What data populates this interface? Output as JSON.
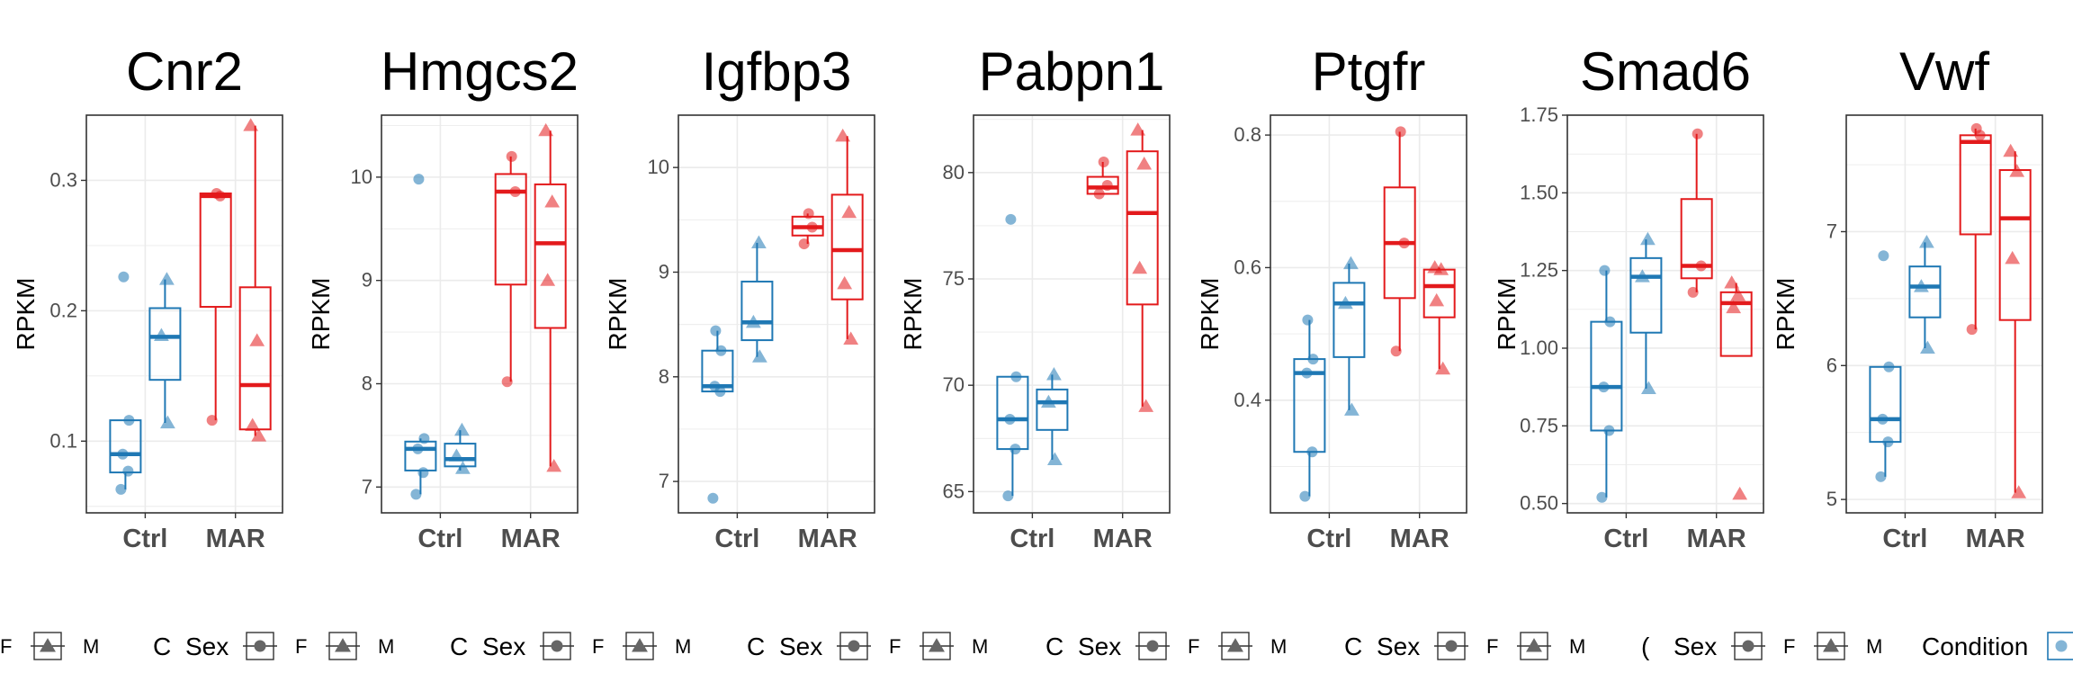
{
  "colors": {
    "ctrl": "#1f78b4",
    "mar": "#e31a1c",
    "grid": "#ebebeb",
    "axis": "#333333",
    "key": "#666666"
  },
  "chart_data": [
    {
      "type": "box",
      "title": "Cnr2",
      "ylabel": "RPKM",
      "categories": [
        "Ctrl",
        "MAR"
      ],
      "ylim": [
        0.045,
        0.35
      ],
      "yticks": [
        0.1,
        0.2,
        0.3
      ],
      "ytick_labels": [
        "0.1",
        "0.2",
        "0.3"
      ],
      "boxes": [
        {
          "condition": "Ctrl",
          "sex": "F",
          "q1": 0.076,
          "median": 0.09,
          "q3": 0.116,
          "whisker_low": 0.063,
          "whisker_high": 0.116
        },
        {
          "condition": "Ctrl",
          "sex": "M",
          "q1": 0.147,
          "median": 0.18,
          "q3": 0.202,
          "whisker_low": 0.114,
          "whisker_high": 0.224
        },
        {
          "condition": "MAR",
          "sex": "F",
          "q1": 0.203,
          "median": 0.288,
          "q3": 0.29,
          "whisker_low": 0.116,
          "whisker_high": 0.29
        },
        {
          "condition": "MAR",
          "sex": "M",
          "q1": 0.109,
          "median": 0.143,
          "q3": 0.218,
          "whisker_low": 0.104,
          "whisker_high": 0.342
        }
      ],
      "points": [
        {
          "condition": "Ctrl",
          "sex": "F",
          "values": [
            0.063,
            0.077,
            0.09,
            0.116,
            0.226
          ]
        },
        {
          "condition": "Ctrl",
          "sex": "M",
          "values": [
            0.114,
            0.181,
            0.224
          ]
        },
        {
          "condition": "MAR",
          "sex": "F",
          "values": [
            0.116,
            0.288,
            0.29
          ]
        },
        {
          "condition": "MAR",
          "sex": "M",
          "values": [
            0.104,
            0.112,
            0.177,
            0.342
          ]
        }
      ]
    },
    {
      "type": "box",
      "title": "Hmgcs2",
      "ylabel": "RPKM",
      "categories": [
        "Ctrl",
        "MAR"
      ],
      "ylim": [
        6.75,
        10.6
      ],
      "yticks": [
        7,
        8,
        9,
        10
      ],
      "ytick_labels": [
        "7",
        "8",
        "9",
        "10"
      ],
      "boxes": [
        {
          "condition": "Ctrl",
          "sex": "F",
          "q1": 7.16,
          "median": 7.37,
          "q3": 7.44,
          "whisker_low": 6.93,
          "whisker_high": 7.47
        },
        {
          "condition": "Ctrl",
          "sex": "M",
          "q1": 7.2,
          "median": 7.27,
          "q3": 7.42,
          "whisker_low": 7.16,
          "whisker_high": 7.55
        },
        {
          "condition": "MAR",
          "sex": "F",
          "q1": 8.96,
          "median": 9.86,
          "q3": 10.03,
          "whisker_low": 8.02,
          "whisker_high": 10.2
        },
        {
          "condition": "MAR",
          "sex": "M",
          "q1": 8.54,
          "median": 9.36,
          "q3": 9.93,
          "whisker_low": 7.2,
          "whisker_high": 10.45
        }
      ],
      "points": [
        {
          "condition": "Ctrl",
          "sex": "F",
          "values": [
            6.93,
            7.14,
            7.37,
            7.47,
            9.98
          ]
        },
        {
          "condition": "Ctrl",
          "sex": "M",
          "values": [
            7.18,
            7.3,
            7.55
          ]
        },
        {
          "condition": "MAR",
          "sex": "F",
          "values": [
            8.02,
            9.86,
            10.2
          ]
        },
        {
          "condition": "MAR",
          "sex": "M",
          "values": [
            7.2,
            9.0,
            9.76,
            10.45
          ]
        }
      ]
    },
    {
      "type": "box",
      "title": "Igfbp3",
      "ylabel": "RPKM",
      "categories": [
        "Ctrl",
        "MAR"
      ],
      "ylim": [
        6.7,
        10.5
      ],
      "yticks": [
        7,
        8,
        9,
        10
      ],
      "ytick_labels": [
        "7",
        "8",
        "9",
        "10"
      ],
      "boxes": [
        {
          "condition": "Ctrl",
          "sex": "F",
          "q1": 7.86,
          "median": 7.91,
          "q3": 8.25,
          "whisker_low": 7.86,
          "whisker_high": 8.44
        },
        {
          "condition": "Ctrl",
          "sex": "M",
          "q1": 8.35,
          "median": 8.52,
          "q3": 8.91,
          "whisker_low": 8.19,
          "whisker_high": 9.28
        },
        {
          "condition": "MAR",
          "sex": "F",
          "q1": 9.35,
          "median": 9.43,
          "q3": 9.53,
          "whisker_low": 9.27,
          "whisker_high": 9.56
        },
        {
          "condition": "MAR",
          "sex": "M",
          "q1": 8.74,
          "median": 9.21,
          "q3": 9.74,
          "whisker_low": 8.36,
          "whisker_high": 10.3
        }
      ],
      "points": [
        {
          "condition": "Ctrl",
          "sex": "F",
          "values": [
            6.84,
            7.86,
            7.91,
            8.25,
            8.44
          ]
        },
        {
          "condition": "Ctrl",
          "sex": "M",
          "values": [
            8.19,
            8.52,
            9.28
          ]
        },
        {
          "condition": "MAR",
          "sex": "F",
          "values": [
            9.27,
            9.43,
            9.56
          ]
        },
        {
          "condition": "MAR",
          "sex": "M",
          "values": [
            8.36,
            8.89,
            9.57,
            10.3
          ]
        }
      ]
    },
    {
      "type": "box",
      "title": "Pabpn1",
      "ylabel": "RPKM",
      "categories": [
        "Ctrl",
        "MAR"
      ],
      "ylim": [
        64.0,
        82.7
      ],
      "yticks": [
        65,
        70,
        75,
        80
      ],
      "ytick_labels": [
        "65",
        "70",
        "75",
        "80"
      ],
      "boxes": [
        {
          "condition": "Ctrl",
          "sex": "F",
          "q1": 67.0,
          "median": 68.4,
          "q3": 70.4,
          "whisker_low": 64.8,
          "whisker_high": 70.4
        },
        {
          "condition": "Ctrl",
          "sex": "M",
          "q1": 67.9,
          "median": 69.2,
          "q3": 69.8,
          "whisker_low": 66.5,
          "whisker_high": 70.5
        },
        {
          "condition": "MAR",
          "sex": "F",
          "q1": 79.0,
          "median": 79.3,
          "q3": 79.8,
          "whisker_low": 79.0,
          "whisker_high": 80.5
        },
        {
          "condition": "MAR",
          "sex": "M",
          "q1": 73.8,
          "median": 78.1,
          "q3": 81.0,
          "whisker_low": 69.0,
          "whisker_high": 82.0
        }
      ],
      "points": [
        {
          "condition": "Ctrl",
          "sex": "F",
          "values": [
            64.8,
            67.0,
            68.4,
            70.4,
            77.8
          ]
        },
        {
          "condition": "Ctrl",
          "sex": "M",
          "values": [
            66.5,
            69.2,
            70.5
          ]
        },
        {
          "condition": "MAR",
          "sex": "F",
          "values": [
            79.0,
            79.4,
            80.5
          ]
        },
        {
          "condition": "MAR",
          "sex": "M",
          "values": [
            69.0,
            75.5,
            80.4,
            82.0
          ]
        }
      ]
    },
    {
      "type": "box",
      "title": "Ptgfr",
      "ylabel": "RPKM",
      "categories": [
        "Ctrl",
        "MAR"
      ],
      "ylim": [
        0.23,
        0.83
      ],
      "yticks": [
        0.4,
        0.6,
        0.8
      ],
      "ytick_labels": [
        "0.4",
        "0.6",
        "0.8"
      ],
      "boxes": [
        {
          "condition": "Ctrl",
          "sex": "F",
          "q1": 0.322,
          "median": 0.441,
          "q3": 0.462,
          "whisker_low": 0.255,
          "whisker_high": 0.521
        },
        {
          "condition": "Ctrl",
          "sex": "M",
          "q1": 0.465,
          "median": 0.546,
          "q3": 0.577,
          "whisker_low": 0.385,
          "whisker_high": 0.606
        },
        {
          "condition": "MAR",
          "sex": "F",
          "q1": 0.554,
          "median": 0.637,
          "q3": 0.721,
          "whisker_low": 0.474,
          "whisker_high": 0.805
        },
        {
          "condition": "MAR",
          "sex": "M",
          "q1": 0.525,
          "median": 0.572,
          "q3": 0.597,
          "whisker_low": 0.447,
          "whisker_high": 0.6
        }
      ],
      "points": [
        {
          "condition": "Ctrl",
          "sex": "F",
          "values": [
            0.255,
            0.322,
            0.441,
            0.462,
            0.521
          ]
        },
        {
          "condition": "Ctrl",
          "sex": "M",
          "values": [
            0.385,
            0.546,
            0.606
          ]
        },
        {
          "condition": "MAR",
          "sex": "F",
          "values": [
            0.474,
            0.637,
            0.805
          ]
        },
        {
          "condition": "MAR",
          "sex": "M",
          "values": [
            0.447,
            0.55,
            0.597,
            0.6
          ]
        }
      ]
    },
    {
      "type": "box",
      "title": "Smad6",
      "ylabel": "RPKM",
      "categories": [
        "Ctrl",
        "MAR"
      ],
      "ylim": [
        0.47,
        1.75
      ],
      "yticks": [
        0.5,
        0.75,
        1.0,
        1.25,
        1.5,
        1.75
      ],
      "ytick_labels": [
        "0.50",
        "0.75",
        "1.00",
        "1.25",
        "1.50",
        "1.75"
      ],
      "boxes": [
        {
          "condition": "Ctrl",
          "sex": "F",
          "q1": 0.735,
          "median": 0.875,
          "q3": 1.085,
          "whisker_low": 0.52,
          "whisker_high": 1.25
        },
        {
          "condition": "Ctrl",
          "sex": "M",
          "q1": 1.05,
          "median": 1.23,
          "q3": 1.29,
          "whisker_low": 0.87,
          "whisker_high": 1.35
        },
        {
          "condition": "MAR",
          "sex": "F",
          "q1": 1.225,
          "median": 1.265,
          "q3": 1.48,
          "whisker_low": 1.18,
          "whisker_high": 1.69
        },
        {
          "condition": "MAR",
          "sex": "M",
          "q1": 0.975,
          "median": 1.145,
          "q3": 1.18,
          "whisker_low": 0.975,
          "whisker_high": 1.21
        }
      ],
      "points": [
        {
          "condition": "Ctrl",
          "sex": "F",
          "values": [
            0.52,
            0.735,
            0.875,
            1.085,
            1.25
          ]
        },
        {
          "condition": "Ctrl",
          "sex": "M",
          "values": [
            0.87,
            1.23,
            1.35
          ]
        },
        {
          "condition": "MAR",
          "sex": "F",
          "values": [
            1.18,
            1.265,
            1.69
          ]
        },
        {
          "condition": "MAR",
          "sex": "M",
          "values": [
            0.53,
            1.13,
            1.17,
            1.21
          ]
        }
      ]
    },
    {
      "type": "box",
      "title": "Vwf",
      "ylabel": "RPKM",
      "categories": [
        "Ctrl",
        "MAR"
      ],
      "ylim": [
        4.9,
        7.87
      ],
      "yticks": [
        5,
        6,
        7
      ],
      "ytick_labels": [
        "5",
        "6",
        "7"
      ],
      "boxes": [
        {
          "condition": "Ctrl",
          "sex": "F",
          "q1": 5.43,
          "median": 5.6,
          "q3": 5.99,
          "whisker_low": 5.17,
          "whisker_high": 5.99
        },
        {
          "condition": "Ctrl",
          "sex": "M",
          "q1": 6.36,
          "median": 6.59,
          "q3": 6.74,
          "whisker_low": 6.13,
          "whisker_high": 6.92
        },
        {
          "condition": "MAR",
          "sex": "F",
          "q1": 6.98,
          "median": 7.67,
          "q3": 7.72,
          "whisker_low": 6.27,
          "whisker_high": 7.77
        },
        {
          "condition": "MAR",
          "sex": "M",
          "q1": 6.34,
          "median": 7.1,
          "q3": 7.46,
          "whisker_low": 5.05,
          "whisker_high": 7.6
        }
      ],
      "points": [
        {
          "condition": "Ctrl",
          "sex": "F",
          "values": [
            5.17,
            5.43,
            5.6,
            5.99,
            6.82
          ]
        },
        {
          "condition": "Ctrl",
          "sex": "M",
          "values": [
            6.13,
            6.59,
            6.92
          ]
        },
        {
          "condition": "MAR",
          "sex": "F",
          "values": [
            6.27,
            7.72,
            7.77
          ]
        },
        {
          "condition": "MAR",
          "sex": "M",
          "values": [
            5.05,
            6.8,
            7.45,
            7.6
          ]
        }
      ]
    }
  ],
  "legend": {
    "sex_title": "Sex",
    "f_label": "F",
    "m_label": "M",
    "condition_title": "Condition",
    "clipped_left": [
      "C",
      "C",
      "C",
      "C",
      "C",
      "("
    ],
    "first_f": "F",
    "first_m": "M"
  }
}
